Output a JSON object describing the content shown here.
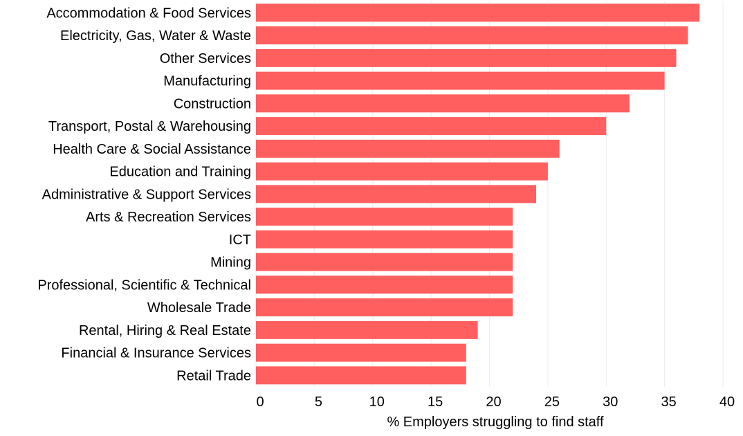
{
  "colors": {
    "bar": "#ff5f5f",
    "grid": "#ececec",
    "text": "#000000",
    "background": "#ffffff"
  },
  "chart_data": {
    "type": "bar",
    "orientation": "horizontal",
    "categories": [
      "Accommodation & Food Services",
      "Electricity, Gas, Water & Waste",
      "Other Services",
      "Manufacturing",
      "Construction",
      "Transport, Postal & Warehousing",
      "Health Care & Social Assistance",
      "Education and Training",
      "Administrative & Support Services",
      "Arts & Recreation Services",
      "ICT",
      "Mining",
      "Professional, Scientific & Technical",
      "Wholesale Trade",
      "Rental, Hiring & Real Estate",
      "Financial & Insurance Services",
      "Retail Trade"
    ],
    "values": [
      38,
      37,
      36,
      35,
      32,
      30,
      26,
      25,
      24,
      22,
      22,
      22,
      22,
      22,
      19,
      18,
      18
    ],
    "title": "",
    "xlabel": "% Employers struggling to find staff",
    "ylabel": "",
    "xlim": [
      0,
      40
    ],
    "xticks": [
      "0",
      "5",
      "10",
      "15",
      "20",
      "25",
      "30",
      "35",
      "40"
    ],
    "grid": "vertical",
    "legend": "none"
  }
}
